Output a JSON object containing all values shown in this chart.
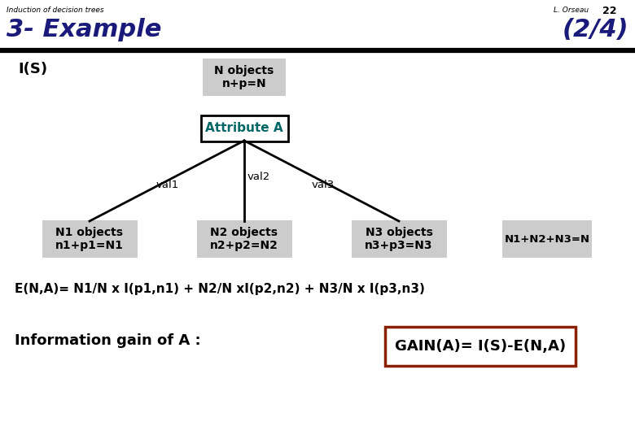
{
  "title_left": "Induction of decision trees",
  "title_right_author": "L. Orseau",
  "title_right_num": "22",
  "heading": "3- Example",
  "heading_right": "(2/4)",
  "heading_color": "#1a1a7a",
  "is_label": "I(S)",
  "root_box_text": "N objects\nn+p=N",
  "attr_box_text": "Attribute A",
  "attr_text_color": "#006666",
  "val_labels": [
    "val1",
    "val2",
    "val3"
  ],
  "leaf_boxes": [
    "N1 objects\nn1+p1=N1",
    "N2 objects\nn2+p2=N2",
    "N3 objects\nn3+p3=N3"
  ],
  "sum_box_text": "N1+N2+N3=N",
  "entropy_text": "E(N,A)= N1/N x I(p1,n1) + N2/N xI(p2,n2) + N3/N x I(p3,n3)",
  "info_gain_label": "Information gain of A :",
  "gain_box_text": "GAIN(A)= I(S)-E(N,A)",
  "gain_box_color": "#8b2000",
  "bg_color": "#ffffff",
  "box_fill_root": "#cccccc",
  "box_fill_attr": "#ffffff",
  "box_fill_leaf": "#cccccc",
  "box_fill_sum": "#cccccc"
}
